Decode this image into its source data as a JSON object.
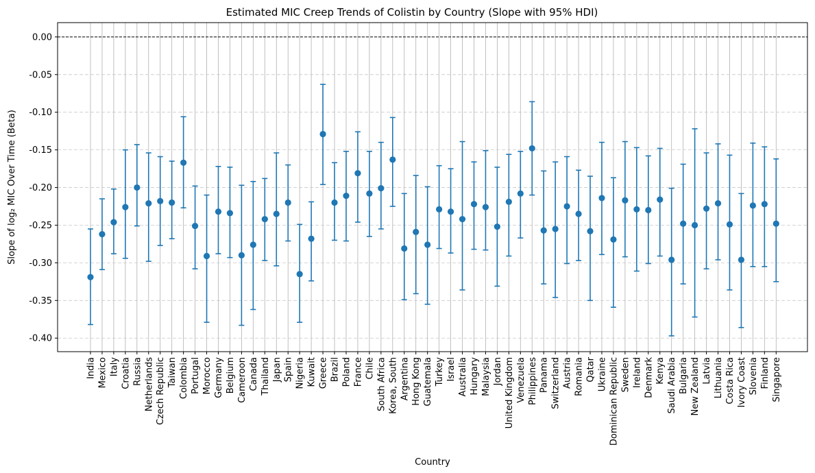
{
  "chart_data": {
    "type": "scatter",
    "title": "Estimated MIC Creep Trends of Colistin by Country (Slope with 95% HDI)",
    "xlabel": "Country",
    "ylabel": "Slope of log₂ MIC Over Time (Beta)",
    "ylim": [
      -0.418,
      0.019
    ],
    "yticks": [
      0.0,
      -0.05,
      -0.1,
      -0.15,
      -0.2,
      -0.25,
      -0.3,
      -0.35,
      -0.4
    ],
    "ytick_labels": [
      "0.00",
      "-0.05",
      "-0.10",
      "-0.15",
      "-0.20",
      "-0.25",
      "-0.30",
      "-0.35",
      "-0.40"
    ],
    "reference_line": 0.0,
    "grid": "vertical solid, horizontal dashed",
    "series_color": "#1f77b4",
    "categories": [
      "India",
      "Mexico",
      "Italy",
      "Croatia",
      "Russia",
      "Netherlands",
      "Czech Republic",
      "Taiwan",
      "Colombia",
      "Portugal",
      "Morocco",
      "Germany",
      "Belgium",
      "Cameroon",
      "Canada",
      "Thailand",
      "Japan",
      "Spain",
      "Nigeria",
      "Kuwait",
      "Greece",
      "Brazil",
      "Poland",
      "France",
      "Chile",
      "South Africa",
      "Korea, South",
      "Argentina",
      "Hong Kong",
      "Guatemala",
      "Turkey",
      "Israel",
      "Australia",
      "Hungary",
      "Malaysia",
      "Jordan",
      "United Kingdom",
      "Venezuela",
      "Philippines",
      "Panama",
      "Switzerland",
      "Austria",
      "Romania",
      "Qatar",
      "Ukraine",
      "Dominican Republic",
      "Sweden",
      "Ireland",
      "Denmark",
      "Kenya",
      "Saudi Arabia",
      "Bulgaria",
      "New Zealand",
      "Latvia",
      "Lithuania",
      "Costa Rica",
      "Ivory Coast",
      "Slovenia",
      "Finland",
      "Singapore"
    ],
    "values": [
      -0.319,
      -0.262,
      -0.246,
      -0.226,
      -0.2,
      -0.221,
      -0.218,
      -0.22,
      -0.167,
      -0.251,
      -0.291,
      -0.232,
      -0.234,
      -0.29,
      -0.276,
      -0.242,
      -0.235,
      -0.22,
      -0.315,
      -0.268,
      -0.129,
      -0.22,
      -0.211,
      -0.181,
      -0.208,
      -0.201,
      -0.163,
      -0.281,
      -0.259,
      -0.276,
      -0.229,
      -0.232,
      -0.242,
      -0.222,
      -0.226,
      -0.252,
      -0.219,
      -0.208,
      -0.148,
      -0.257,
      -0.255,
      -0.225,
      -0.235,
      -0.258,
      -0.214,
      -0.269,
      -0.217,
      -0.229,
      -0.23,
      -0.216,
      -0.296,
      -0.248,
      -0.25,
      -0.228,
      -0.221,
      -0.249,
      -0.296,
      -0.224,
      -0.222,
      -0.248
    ],
    "hdi_low": [
      -0.382,
      -0.309,
      -0.288,
      -0.294,
      -0.251,
      -0.298,
      -0.277,
      -0.268,
      -0.227,
      -0.308,
      -0.379,
      -0.288,
      -0.293,
      -0.383,
      -0.362,
      -0.297,
      -0.304,
      -0.271,
      -0.379,
      -0.324,
      -0.196,
      -0.27,
      -0.271,
      -0.246,
      -0.265,
      -0.255,
      -0.225,
      -0.349,
      -0.341,
      -0.355,
      -0.281,
      -0.287,
      -0.336,
      -0.282,
      -0.283,
      -0.331,
      -0.291,
      -0.267,
      -0.21,
      -0.328,
      -0.346,
      -0.301,
      -0.297,
      -0.35,
      -0.289,
      -0.359,
      -0.292,
      -0.311,
      -0.301,
      -0.291,
      -0.397,
      -0.328,
      -0.372,
      -0.308,
      -0.296,
      -0.336,
      -0.386,
      -0.305,
      -0.305,
      -0.325
    ],
    "hdi_high": [
      -0.255,
      -0.215,
      -0.202,
      -0.15,
      -0.143,
      -0.154,
      -0.159,
      -0.165,
      -0.106,
      -0.198,
      -0.21,
      -0.172,
      -0.173,
      -0.197,
      -0.192,
      -0.188,
      -0.154,
      -0.17,
      -0.249,
      -0.219,
      -0.063,
      -0.167,
      -0.152,
      -0.126,
      -0.152,
      -0.14,
      -0.107,
      -0.208,
      -0.184,
      -0.199,
      -0.171,
      -0.175,
      -0.139,
      -0.166,
      -0.151,
      -0.173,
      -0.156,
      -0.152,
      -0.086,
      -0.178,
      -0.166,
      -0.159,
      -0.177,
      -0.185,
      -0.14,
      -0.187,
      -0.139,
      -0.147,
      -0.158,
      -0.148,
      -0.201,
      -0.169,
      -0.122,
      -0.154,
      -0.142,
      -0.157,
      -0.208,
      -0.141,
      -0.146,
      -0.162
    ]
  }
}
